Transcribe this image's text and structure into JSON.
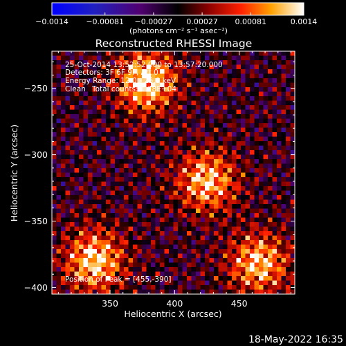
{
  "chart_data": {
    "type": "heatmap",
    "title": "Reconstructed RHESSI Image",
    "xlabel": "Heliocentric X (arcsec)",
    "ylabel": "Heliocentric Y (arcsec)",
    "xlim": [
      305,
      493
    ],
    "ylim": [
      -405,
      -222
    ],
    "x_ticks": [
      350,
      400,
      450
    ],
    "x_tick_labels": [
      "350",
      "400",
      "450"
    ],
    "y_ticks": [
      -250,
      -300,
      -350,
      -400
    ],
    "y_tick_labels": [
      "−250",
      "−300",
      "−350",
      "−400"
    ],
    "colorbar": {
      "min": -0.0014,
      "max": 0.0014,
      "ticks": [
        -0.0014,
        -0.00081,
        -0.00027,
        0.00027,
        0.00081,
        0.0014
      ],
      "tick_labels": [
        "−0.0014",
        "−0.00081",
        "−0.00027",
        "0.00027",
        "0.00081",
        "0.0014"
      ],
      "unit_label": "(photons cm⁻² s⁻¹ asec⁻²)"
    },
    "sources": [
      {
        "x": 378,
        "y": -245,
        "peak": 0.0014
      },
      {
        "x": 425,
        "y": -320,
        "peak": 0.0012
      },
      {
        "x": 338,
        "y": -380,
        "peak": 0.0013
      },
      {
        "x": 465,
        "y": -382,
        "peak": 0.0012
      }
    ],
    "peak_position": [
      455,
      -390
    ]
  },
  "info": {
    "time_range": "25-Oct-2014 13:52:52.000 to 13:57:20.000",
    "detectors": "Detectors: 3F 6F 9F, Att 0",
    "energy_range": "Energy Range: 12.0 - 25.0 keV",
    "method": "Clean",
    "total_counts": "Total counts: 1.78E+04",
    "peak_position": "Position of Peak = [455,-390]"
  },
  "footer": {
    "date": "18-May-2022 16:35"
  }
}
